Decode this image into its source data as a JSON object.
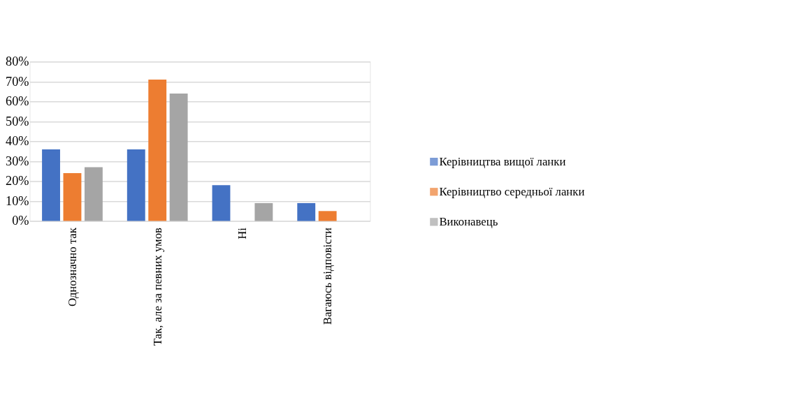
{
  "chart_data": {
    "type": "bar",
    "categories": [
      "Однозначно так",
      "Так, але за певних умов",
      "Ні",
      "Вагаюсь відповісти"
    ],
    "series": [
      {
        "name": "Керівництва вищої ланки",
        "color": "#4472c4",
        "values": [
          36,
          36,
          18,
          9
        ]
      },
      {
        "name": "Керівництво середньої ланки",
        "color": "#ed7d31",
        "values": [
          24,
          71,
          0,
          5
        ]
      },
      {
        "name": "Виконавець",
        "color": "#a5a5a5",
        "values": [
          27,
          64,
          9,
          0
        ]
      }
    ],
    "ylim": [
      0,
      80
    ],
    "yticks": [
      {
        "value": 0,
        "label": "0%"
      },
      {
        "value": 10,
        "label": "10%"
      },
      {
        "value": 20,
        "label": "20%"
      },
      {
        "value": 30,
        "label": "30%"
      },
      {
        "value": 40,
        "label": "40%"
      },
      {
        "value": 50,
        "label": "50%"
      },
      {
        "value": 60,
        "label": "60%"
      },
      {
        "value": 70,
        "label": "70%"
      },
      {
        "value": 80,
        "label": "80%"
      }
    ],
    "grid": "y",
    "legend": "right"
  }
}
